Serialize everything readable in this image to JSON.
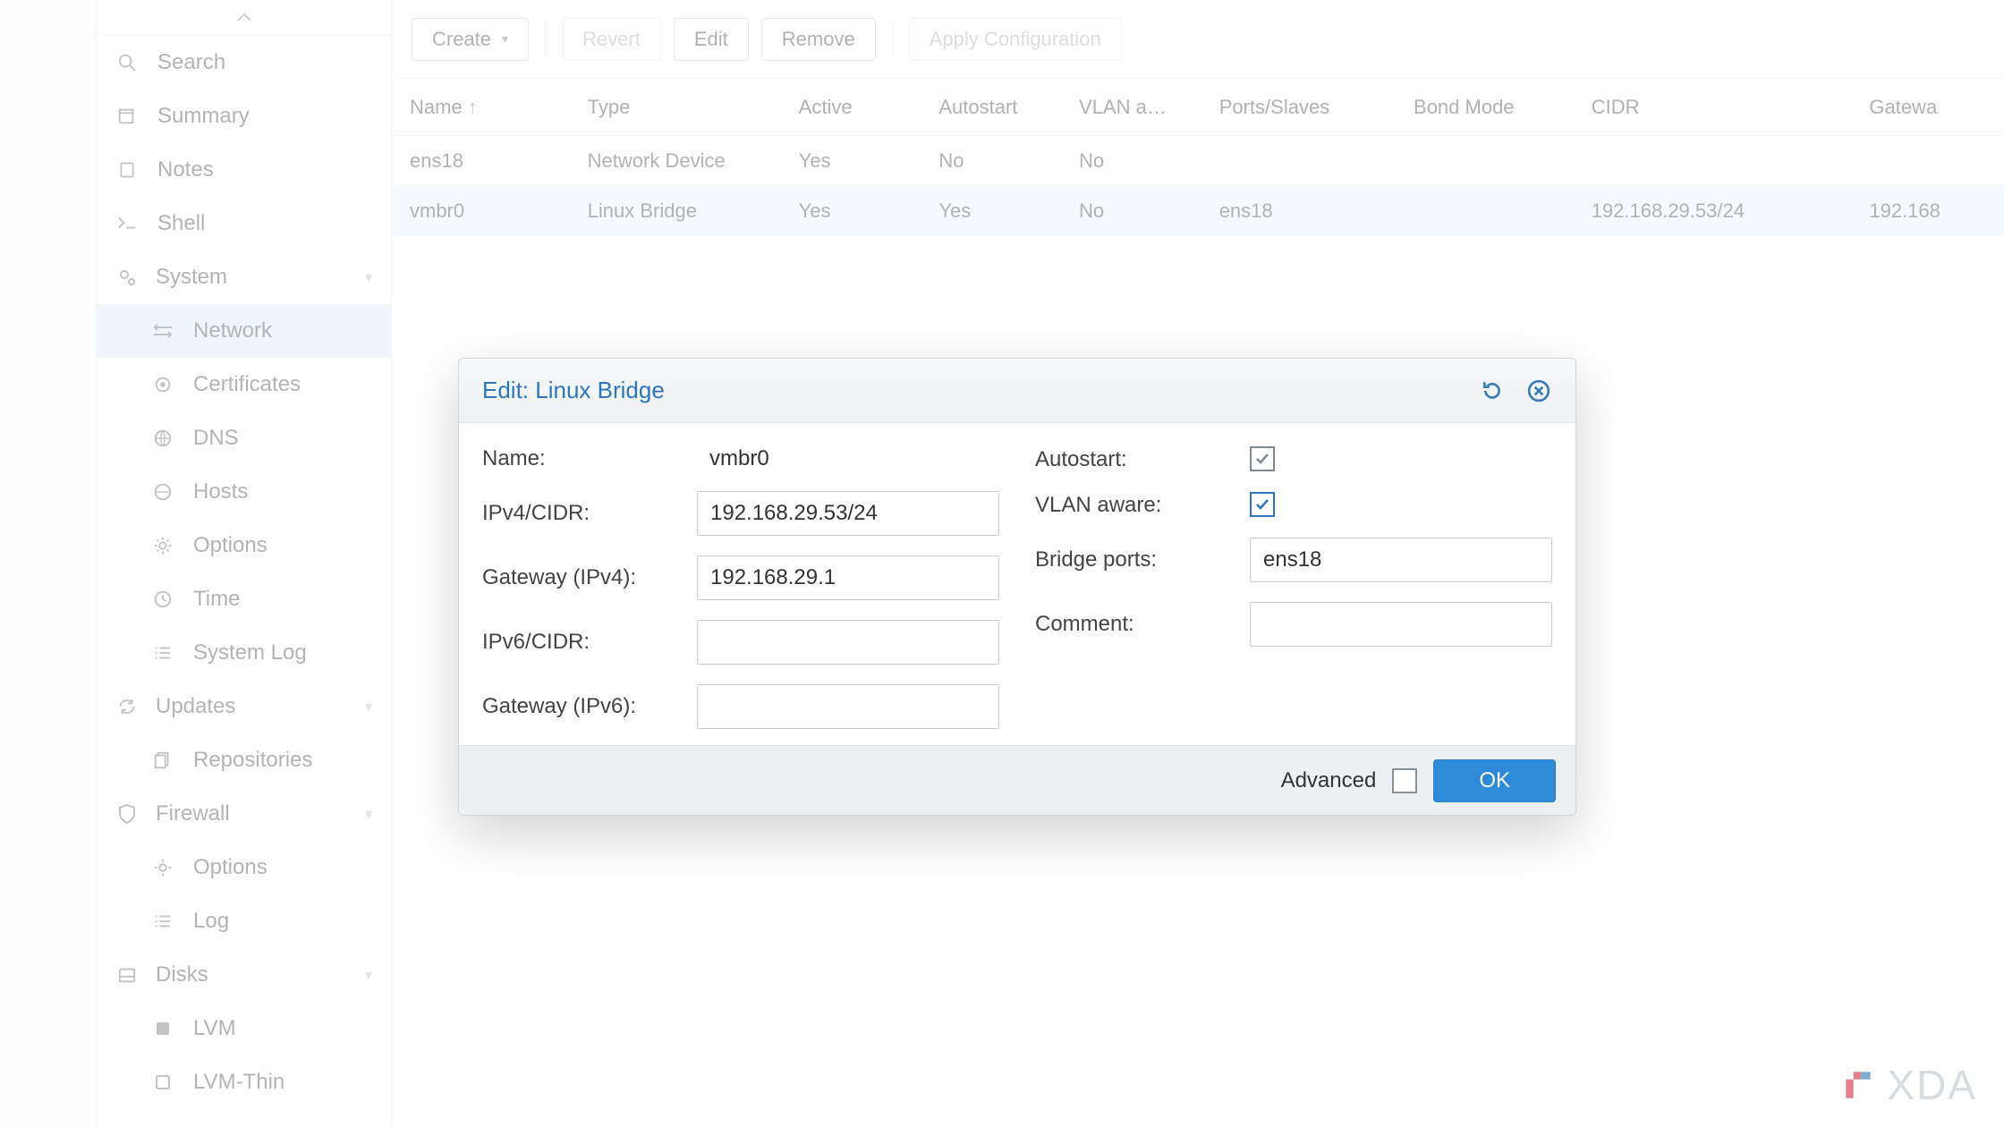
{
  "colors": {
    "accent": "#2f76bf",
    "primary_btn": "#2f8bd8",
    "row_selected": "#e7f1fa",
    "sidebar_selected": "#d9e8f5",
    "border": "#cfcfcf"
  },
  "sidebar": {
    "search": "Search",
    "summary": "Summary",
    "notes": "Notes",
    "shell": "Shell",
    "system": "System",
    "network": "Network",
    "certificates": "Certificates",
    "dns": "DNS",
    "hosts": "Hosts",
    "options": "Options",
    "time": "Time",
    "systemlog": "System Log",
    "updates": "Updates",
    "repositories": "Repositories",
    "firewall": "Firewall",
    "fw_options": "Options",
    "fw_log": "Log",
    "disks": "Disks",
    "lvm": "LVM",
    "lvmthin": "LVM-Thin"
  },
  "toolbar": {
    "create": "Create",
    "revert": "Revert",
    "edit": "Edit",
    "remove": "Remove",
    "apply": "Apply Configuration"
  },
  "table": {
    "columns": {
      "name": "Name",
      "type": "Type",
      "active": "Active",
      "autostart": "Autostart",
      "vlan": "VLAN a…",
      "ports": "Ports/Slaves",
      "bond": "Bond Mode",
      "cidr": "CIDR",
      "gateway": "Gatewa"
    },
    "rows": [
      {
        "name": "ens18",
        "type": "Network Device",
        "active": "Yes",
        "autostart": "No",
        "vlan": "No",
        "ports": "",
        "bond": "",
        "cidr": "",
        "gateway": "",
        "selected": false
      },
      {
        "name": "vmbr0",
        "type": "Linux Bridge",
        "active": "Yes",
        "autostart": "Yes",
        "vlan": "No",
        "ports": "ens18",
        "bond": "",
        "cidr": "192.168.29.53/24",
        "gateway": "192.168",
        "selected": true
      }
    ]
  },
  "modal": {
    "title": "Edit: Linux Bridge",
    "labels": {
      "name": "Name:",
      "ipv4": "IPv4/CIDR:",
      "gw4": "Gateway (IPv4):",
      "ipv6": "IPv6/CIDR:",
      "gw6": "Gateway (IPv6):",
      "autostart": "Autostart:",
      "vlan": "VLAN aware:",
      "ports": "Bridge ports:",
      "comment": "Comment:"
    },
    "values": {
      "name": "vmbr0",
      "ipv4": "192.168.29.53/24",
      "gw4": "192.168.29.1",
      "ipv6": "",
      "gw6": "",
      "ports": "ens18",
      "comment": "",
      "autostart_checked": true,
      "vlan_checked": true
    },
    "footer": {
      "advanced": "Advanced",
      "ok": "OK"
    }
  },
  "watermark": "XDA"
}
